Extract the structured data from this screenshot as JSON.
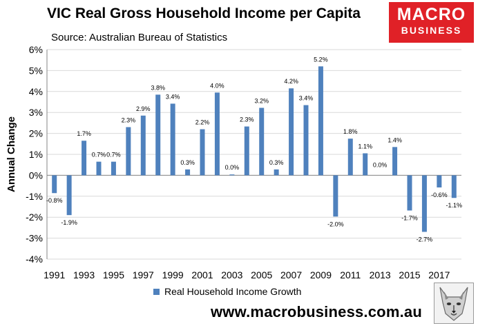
{
  "header": {
    "title": "VIC Real Gross Household Income per Capita",
    "source": "Source: Australian Bureau of Statistics"
  },
  "logo": {
    "line1": "MACRO",
    "line2": "BUSINESS",
    "color": "#e02127"
  },
  "footer": {
    "url": "www.macrobusiness.com.au"
  },
  "chart_data": {
    "type": "bar",
    "title": "VIC Real Gross Household Income per Capita",
    "xlabel": "",
    "ylabel": "Annual Change",
    "ylim": [
      -4,
      6
    ],
    "yticks": [
      6,
      5,
      4,
      3,
      2,
      1,
      0,
      -1,
      -2,
      -3,
      -4
    ],
    "ytick_labels": [
      "6%",
      "5%",
      "4%",
      "3%",
      "2%",
      "1%",
      "0%",
      "-1%",
      "-2%",
      "-3%",
      "-4%"
    ],
    "xtick_labels": [
      "1991",
      "1993",
      "1995",
      "1997",
      "1999",
      "2001",
      "2003",
      "2005",
      "2007",
      "2009",
      "2011",
      "2013",
      "2015",
      "2017"
    ],
    "grid": "horizontal",
    "legend_position": "bottom",
    "bar_color": "#4f81bd",
    "categories": [
      "1991",
      "1992",
      "1993",
      "1994",
      "1995",
      "1996",
      "1997",
      "1998",
      "1999",
      "2000",
      "2001",
      "2002",
      "2003",
      "2004",
      "2005",
      "2006",
      "2007",
      "2008",
      "2009",
      "2010",
      "2011",
      "2012",
      "2013",
      "2014",
      "2015",
      "2016",
      "2017",
      "2018"
    ],
    "series": [
      {
        "name": "Real Household Income Growth",
        "values": [
          -0.85,
          -1.9,
          1.65,
          0.65,
          0.65,
          2.3,
          2.85,
          3.85,
          3.42,
          0.28,
          2.2,
          3.95,
          0.04,
          2.33,
          3.22,
          0.28,
          4.15,
          3.35,
          5.2,
          -1.97,
          1.75,
          1.05,
          0.0,
          1.35,
          -1.68,
          -2.7,
          -0.58,
          -1.08
        ],
        "labels": [
          "-0.8%",
          "-1.9%",
          "1.7%",
          "0.7%",
          "0.7%",
          "2.3%",
          "2.9%",
          "3.8%",
          "3.4%",
          "0.3%",
          "2.2%",
          "4.0%",
          "0.0%",
          "2.3%",
          "3.2%",
          "0.3%",
          "4.2%",
          "3.4%",
          "5.2%",
          "-2.0%",
          "1.8%",
          "1.1%",
          "0.0%",
          "1.4%",
          "-1.7%",
          "-2.7%",
          "-0.6%",
          "-1.1%"
        ]
      }
    ]
  }
}
